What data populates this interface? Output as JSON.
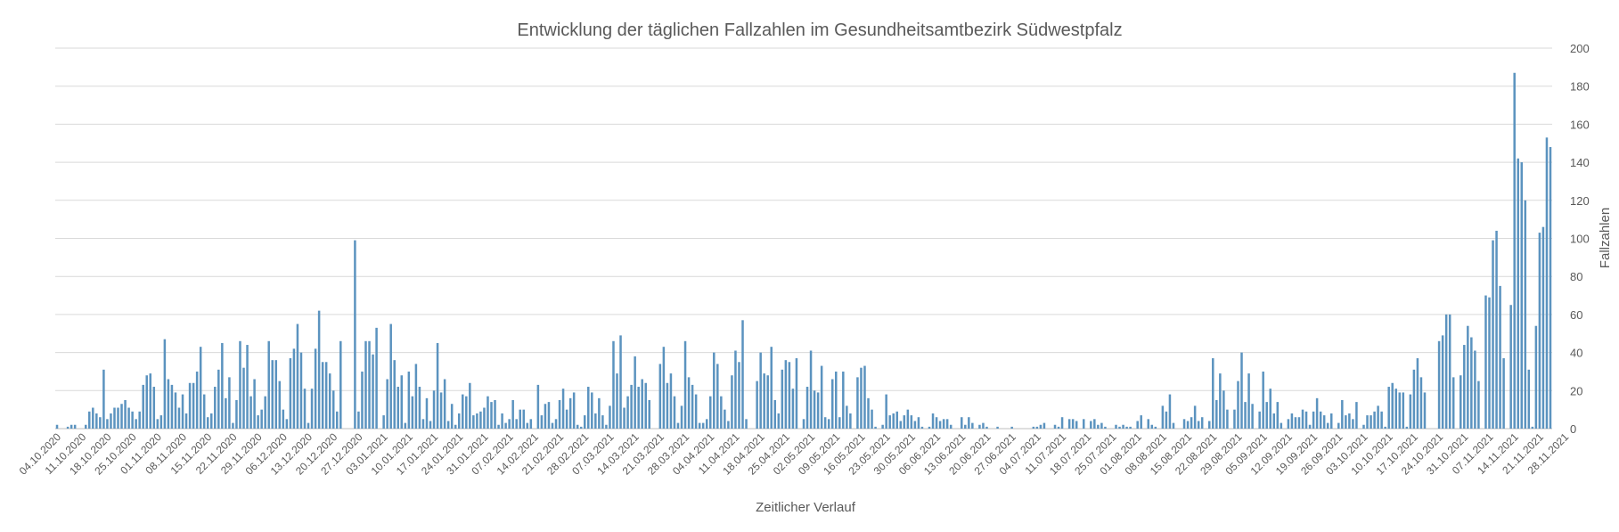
{
  "chart_data": {
    "type": "bar",
    "title": "Entwicklung der täglichen Fallzahlen im Gesundheitsamtbezirk Südwestpfalz",
    "xlabel": "Zeitlicher Verlauf",
    "ylabel": "Fallzahlen",
    "ylim": [
      0,
      200
    ],
    "yticks": [
      0,
      20,
      40,
      60,
      80,
      100,
      120,
      140,
      160,
      180,
      200
    ],
    "y_axis_side": "right",
    "grid": true,
    "bar_color": "#5b93bf",
    "x_start": "04.10.2020",
    "x_end": "04.12.2021",
    "x_tick_labels": [
      "04.10.2020",
      "11.10.2020",
      "18.10.2020",
      "25.10.2020",
      "01.11.2020",
      "08.11.2020",
      "15.11.2020",
      "22.11.2020",
      "29.11.2020",
      "06.12.2020",
      "13.12.2020",
      "20.12.2020",
      "27.12.2020",
      "03.01.2021",
      "10.01.2021",
      "17.01.2021",
      "24.01.2021",
      "31.01.2021",
      "07.02.2021",
      "14.02.2021",
      "21.02.2021",
      "28.02.2021",
      "07.03.2021",
      "14.03.2021",
      "21.03.2021",
      "28.03.2021",
      "04.04.2021",
      "11.04.2021",
      "18.04.2021",
      "25.04.2021",
      "02.05.2021",
      "09.05.2021",
      "16.05.2021",
      "23.05.2021",
      "30.05.2021",
      "06.06.2021",
      "13.06.2021",
      "20.06.2021",
      "27.06.2021",
      "04.07.2021",
      "11.07.2021",
      "18.07.2021",
      "25.07.2021",
      "01.08.2021",
      "08.08.2021",
      "15.08.2021",
      "22.08.2021",
      "29.08.2021",
      "05.09.2021",
      "12.09.2021",
      "19.09.2021",
      "26.09.2021",
      "03.10.2021",
      "10.10.2021",
      "17.10.2021",
      "24.10.2021",
      "31.10.2021",
      "07.11.2021",
      "14.11.2021",
      "21.11.2021",
      "28.11.2021"
    ],
    "series": [
      {
        "values": [
          2,
          0,
          0,
          1,
          2,
          2,
          0,
          0,
          2,
          9,
          11,
          8,
          6,
          31,
          5,
          8,
          11,
          11,
          13,
          15,
          11,
          9,
          5,
          9,
          23,
          28,
          29,
          22,
          5,
          7,
          47,
          26,
          23,
          19,
          11,
          18,
          8,
          24,
          24,
          30,
          43,
          18,
          6,
          8,
          22,
          31,
          45,
          16,
          27,
          3,
          15,
          46,
          32,
          44,
          17,
          26,
          7,
          10,
          17,
          46,
          36,
          36,
          25,
          10,
          5,
          37,
          42,
          55,
          40,
          21,
          3,
          21,
          42,
          62,
          35,
          35,
          29,
          20,
          9,
          46,
          0,
          0,
          0,
          99,
          9,
          30,
          46,
          46,
          39,
          53,
          0,
          7,
          26,
          55,
          36,
          22,
          28,
          3,
          30,
          17,
          34,
          22,
          5,
          16,
          4,
          20,
          45,
          19,
          26,
          4,
          13,
          2,
          8,
          18,
          17,
          24,
          7,
          8,
          9,
          11,
          17,
          14,
          15,
          2,
          8,
          3,
          5,
          15,
          5,
          10,
          10,
          3,
          5,
          0,
          23,
          7,
          13,
          14,
          3,
          5,
          15,
          21,
          10,
          16,
          19,
          2,
          1,
          7,
          22,
          19,
          8,
          16,
          7,
          2,
          12,
          46,
          29,
          49,
          11,
          17,
          23,
          38,
          22,
          26,
          24,
          15,
          0,
          0,
          34,
          43,
          24,
          29,
          17,
          3,
          12,
          46,
          27,
          23,
          18,
          3,
          3,
          5,
          17,
          40,
          34,
          17,
          10,
          4,
          28,
          41,
          35,
          57,
          5,
          0,
          0,
          25,
          40,
          29,
          28,
          43,
          15,
          8,
          31,
          36,
          35,
          21,
          37,
          0,
          5,
          22,
          41,
          20,
          19,
          33,
          6,
          5,
          26,
          30,
          6,
          30,
          12,
          8,
          0,
          27,
          32,
          33,
          16,
          10,
          1,
          0,
          2,
          18,
          7,
          8,
          9,
          4,
          7,
          10,
          7,
          4,
          6,
          1,
          0,
          1,
          8,
          6,
          4,
          5,
          5,
          2,
          0,
          0,
          6,
          2,
          6,
          3,
          0,
          2,
          3,
          1,
          0,
          0,
          1,
          0,
          0,
          0,
          1,
          0,
          0,
          0,
          0,
          0,
          1,
          1,
          2,
          3,
          0,
          0,
          2,
          1,
          6,
          0,
          5,
          5,
          4,
          0,
          5,
          0,
          4,
          5,
          2,
          3,
          1,
          0,
          0,
          2,
          1,
          2,
          1,
          1,
          0,
          4,
          7,
          0,
          5,
          2,
          1,
          0,
          12,
          9,
          18,
          3,
          0,
          0,
          5,
          4,
          6,
          12,
          4,
          6,
          0,
          4,
          37,
          15,
          29,
          20,
          10,
          0,
          10,
          25,
          40,
          14,
          29,
          13,
          0,
          9,
          30,
          14,
          21,
          8,
          14,
          3,
          0,
          5,
          8,
          6,
          6,
          10,
          9,
          2,
          9,
          16,
          9,
          7,
          3,
          8,
          0,
          3,
          15,
          7,
          8,
          5,
          14,
          0,
          2,
          7,
          7,
          9,
          12,
          9,
          1,
          22,
          24,
          21,
          19,
          19,
          1,
          18,
          31,
          37,
          27,
          19,
          0,
          0,
          0,
          46,
          49,
          60,
          60,
          27,
          0,
          28,
          44,
          54,
          48,
          41,
          25,
          0,
          70,
          69,
          99,
          104,
          75,
          37,
          0,
          65,
          187,
          142,
          140,
          120,
          31,
          1,
          54,
          103,
          106,
          153,
          148
        ]
      }
    ]
  }
}
